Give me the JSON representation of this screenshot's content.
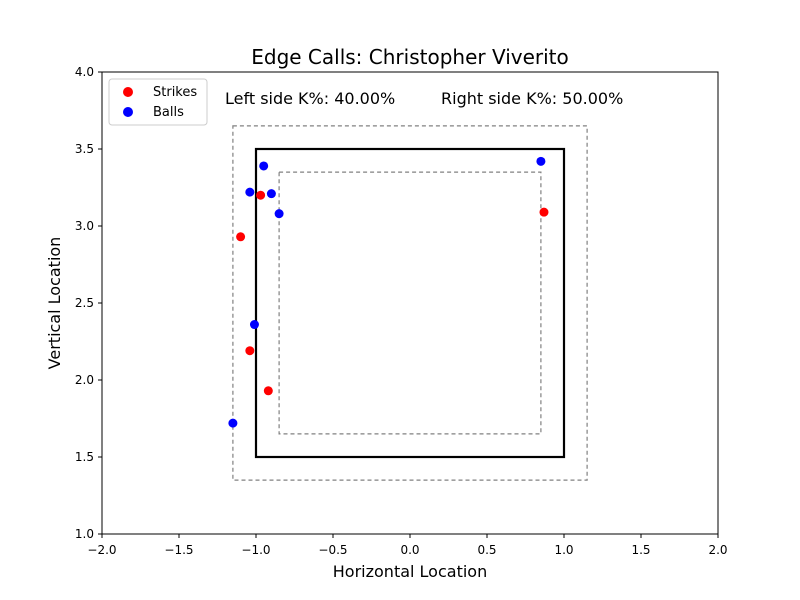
{
  "chart_data": {
    "type": "scatter",
    "title": "Edge Calls: Christopher Viverito",
    "xlabel": "Horizontal Location",
    "ylabel": "Vertical Location",
    "xlim": [
      -2.0,
      2.0
    ],
    "ylim": [
      1.0,
      4.0
    ],
    "x_ticks": [
      "−2.0",
      "−1.5",
      "−1.0",
      "−0.5",
      "0.0",
      "0.5",
      "1.0",
      "1.5",
      "2.0"
    ],
    "y_ticks": [
      "1.0",
      "1.5",
      "2.0",
      "2.5",
      "3.0",
      "3.5",
      "4.0"
    ],
    "grid": false,
    "legend_position": "top-left",
    "annotations": {
      "left": "Left side K%: 40.00%",
      "right": "Right side K%: 50.00%"
    },
    "strike_zone": {
      "x": [
        -1.0,
        1.0
      ],
      "y": [
        1.5,
        3.5
      ]
    },
    "outer_zone": {
      "x": [
        -1.15,
        1.15
      ],
      "y": [
        1.35,
        3.65
      ]
    },
    "inner_zone": {
      "x": [
        -0.85,
        0.85
      ],
      "y": [
        1.65,
        3.35
      ]
    },
    "series": [
      {
        "name": "Strikes",
        "color": "#ff0000",
        "points": [
          {
            "x": -0.97,
            "y": 3.2
          },
          {
            "x": -1.1,
            "y": 2.93
          },
          {
            "x": -1.04,
            "y": 2.19
          },
          {
            "x": -0.92,
            "y": 1.93
          },
          {
            "x": 0.87,
            "y": 3.09
          }
        ]
      },
      {
        "name": "Balls",
        "color": "#0000ff",
        "points": [
          {
            "x": -0.95,
            "y": 3.39
          },
          {
            "x": -1.04,
            "y": 3.22
          },
          {
            "x": -0.9,
            "y": 3.21
          },
          {
            "x": -0.85,
            "y": 3.08
          },
          {
            "x": -1.01,
            "y": 2.36
          },
          {
            "x": -1.15,
            "y": 1.72
          },
          {
            "x": 0.85,
            "y": 3.42
          }
        ]
      }
    ]
  }
}
